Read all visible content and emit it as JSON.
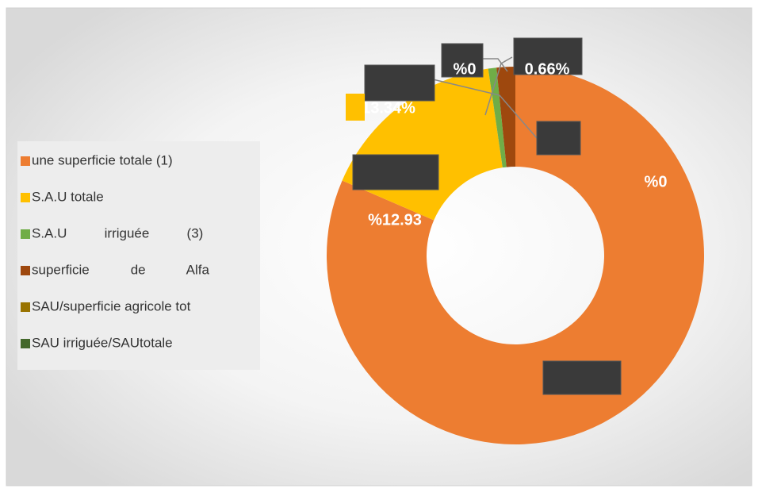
{
  "chart_data": {
    "type": "donut",
    "categories": [
      "une superficie totale (1)",
      "S.A.U totale",
      "S.A.U          irriguée          (3)",
      "superficie           de           Alfa",
      "SAU/superficie agricole tot",
      "SAU irriguée/SAUtotale"
    ],
    "values": [
      81.5,
      16.2,
      0.7,
      1.6,
      0,
      0
    ],
    "colors": [
      "#ED7D31",
      "#FFC000",
      "#70AD47",
      "#9E480E",
      "#997300",
      "#43682B"
    ],
    "annotations": [
      "%0",
      "0.66%",
      "13.34%",
      "%12.93",
      "%0"
    ]
  }
}
